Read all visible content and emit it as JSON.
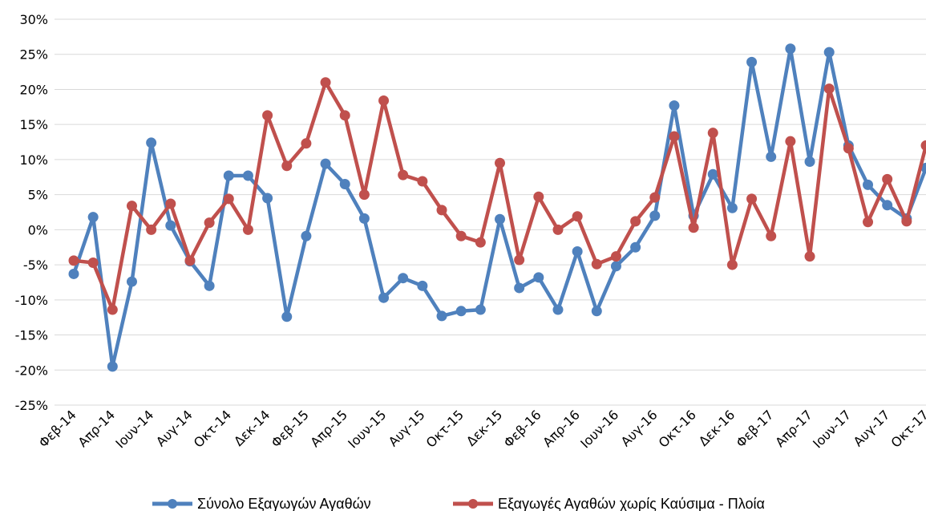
{
  "chart_data": {
    "type": "line",
    "x": [
      "Φεβ-14",
      "Μαρ-14",
      "Απρ-14",
      "Μαϊ-14",
      "Ιουν-14",
      "Ιουλ-14",
      "Αυγ-14",
      "Σεπ-14",
      "Οκτ-14",
      "Νοε-14",
      "Δεκ-14",
      "Ιαν-15",
      "Φεβ-15",
      "Μαρ-15",
      "Απρ-15",
      "Μαϊ-15",
      "Ιουν-15",
      "Ιουλ-15",
      "Αυγ-15",
      "Σεπ-15",
      "Οκτ-15",
      "Νοε-15",
      "Δεκ-15",
      "Ιαν-16",
      "Φεβ-16",
      "Μαρ-16",
      "Απρ-16",
      "Μαϊ-16",
      "Ιουν-16",
      "Ιουλ-16",
      "Αυγ-16",
      "Σεπ-16",
      "Οκτ-16",
      "Νοε-16",
      "Δεκ-16",
      "Ιαν-17",
      "Φεβ-17",
      "Μαρ-17",
      "Απρ-17",
      "Μαϊ-17",
      "Ιουν-17",
      "Ιουλ-17",
      "Αυγ-17",
      "Σεπ-17",
      "Οκτ-17"
    ],
    "x_tick_labels": [
      "Φεβ-14",
      "Απρ-14",
      "Ιουν-14",
      "Αυγ-14",
      "Οκτ-14",
      "Δεκ-14",
      "Φεβ-15",
      "Απρ-15",
      "Ιουν-15",
      "Αυγ-15",
      "Οκτ-15",
      "Δεκ-15",
      "Φεβ-16",
      "Απρ-16",
      "Ιουν-16",
      "Αυγ-16",
      "Οκτ-16",
      "Δεκ-16",
      "Φεβ-17",
      "Απρ-17",
      "Ιουν-17",
      "Αυγ-17",
      "Οκτ-17"
    ],
    "y_tick_labels": [
      "30%",
      "25%",
      "20%",
      "15%",
      "10%",
      "5%",
      "0%",
      "-5%",
      "-10%",
      "-15%",
      "-20%",
      "-25%"
    ],
    "ylim": [
      -25,
      30
    ],
    "y_unit": "%",
    "grid": true,
    "legend_position": "bottom",
    "series": [
      {
        "name": "Σύνολο Εξαγωγών Αγαθών",
        "color": "#4F81BD",
        "values": [
          -6.3,
          1.8,
          -19.5,
          -7.4,
          12.4,
          0.6,
          -4.5,
          -8.0,
          7.7,
          7.7,
          4.5,
          -12.4,
          -0.9,
          9.4,
          6.5,
          1.6,
          -9.7,
          -6.9,
          -8.0,
          -12.3,
          -11.6,
          -11.4,
          1.5,
          -8.3,
          -6.8,
          -11.4,
          -3.1,
          -11.6,
          -5.2,
          -2.5,
          2.0,
          17.7,
          2.0,
          7.9,
          3.1,
          23.9,
          10.4,
          25.8,
          9.7,
          25.3,
          12.0,
          6.4,
          3.5,
          1.6,
          8.8
        ]
      },
      {
        "name": "Εξαγωγές Αγαθών χωρίς Καύσιμα - Πλοία",
        "color": "#C0504D",
        "values": [
          -4.4,
          -4.7,
          -11.4,
          3.4,
          0.0,
          3.7,
          -4.4,
          1.0,
          4.4,
          0.0,
          16.3,
          9.1,
          12.3,
          21.0,
          16.3,
          5.0,
          18.4,
          7.8,
          6.9,
          2.8,
          -0.9,
          -1.8,
          9.5,
          -4.3,
          4.7,
          0.0,
          1.9,
          -4.9,
          -3.8,
          1.2,
          4.6,
          13.3,
          0.3,
          13.8,
          -5.0,
          4.4,
          -0.9,
          12.6,
          -3.8,
          20.1,
          11.6,
          1.1,
          7.2,
          1.2,
          12.0
        ]
      }
    ]
  }
}
